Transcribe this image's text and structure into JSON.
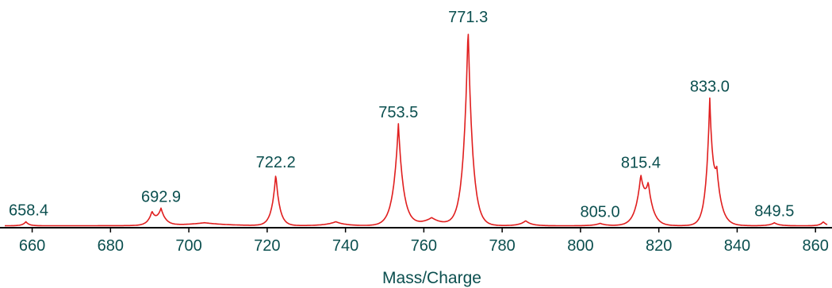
{
  "chart_data": {
    "type": "line",
    "title": "",
    "xlabel": "Mass/Charge",
    "ylabel": "",
    "xlim": [
      653,
      863
    ],
    "ylim": [
      0,
      100
    ],
    "grid": false,
    "colors": {
      "series": "#e01e1e",
      "text": "#0b4f4f",
      "axis": "#000000"
    },
    "x_ticks": [
      660,
      680,
      700,
      720,
      740,
      760,
      780,
      800,
      820,
      840,
      860
    ],
    "peaks": [
      {
        "x": 658.4,
        "y": 2,
        "width": 0.8,
        "label": "658.4"
      },
      {
        "x": 690.6,
        "y": 6,
        "width": 1.0,
        "label": ""
      },
      {
        "x": 692.9,
        "y": 8,
        "width": 1.2,
        "label": "692.9"
      },
      {
        "x": 704.0,
        "y": 1.5,
        "width": 6.0,
        "label": ""
      },
      {
        "x": 722.2,
        "y": 26,
        "width": 1.0,
        "label": "722.2"
      },
      {
        "x": 737.5,
        "y": 2,
        "width": 2.5,
        "label": ""
      },
      {
        "x": 753.5,
        "y": 51,
        "width": 1.3,
        "label": "753.5"
      },
      {
        "x": 762.0,
        "y": 4,
        "width": 3.0,
        "label": ""
      },
      {
        "x": 771.3,
        "y": 100,
        "width": 1.2,
        "label": "771.3"
      },
      {
        "x": 786.0,
        "y": 2.5,
        "width": 1.5,
        "label": ""
      },
      {
        "x": 805.0,
        "y": 1.2,
        "width": 1.5,
        "label": "805.0"
      },
      {
        "x": 815.4,
        "y": 22,
        "width": 1.3,
        "label": "815.4"
      },
      {
        "x": 817.3,
        "y": 17,
        "width": 1.3,
        "label": ""
      },
      {
        "x": 833.0,
        "y": 58,
        "width": 0.9,
        "label": "833.0"
      },
      {
        "x": 834.8,
        "y": 22,
        "width": 1.4,
        "label": ""
      },
      {
        "x": 849.5,
        "y": 1.5,
        "width": 1.2,
        "label": "849.5"
      },
      {
        "x": 862.0,
        "y": 2,
        "width": 0.8,
        "label": ""
      }
    ],
    "baseline": 1.0
  }
}
